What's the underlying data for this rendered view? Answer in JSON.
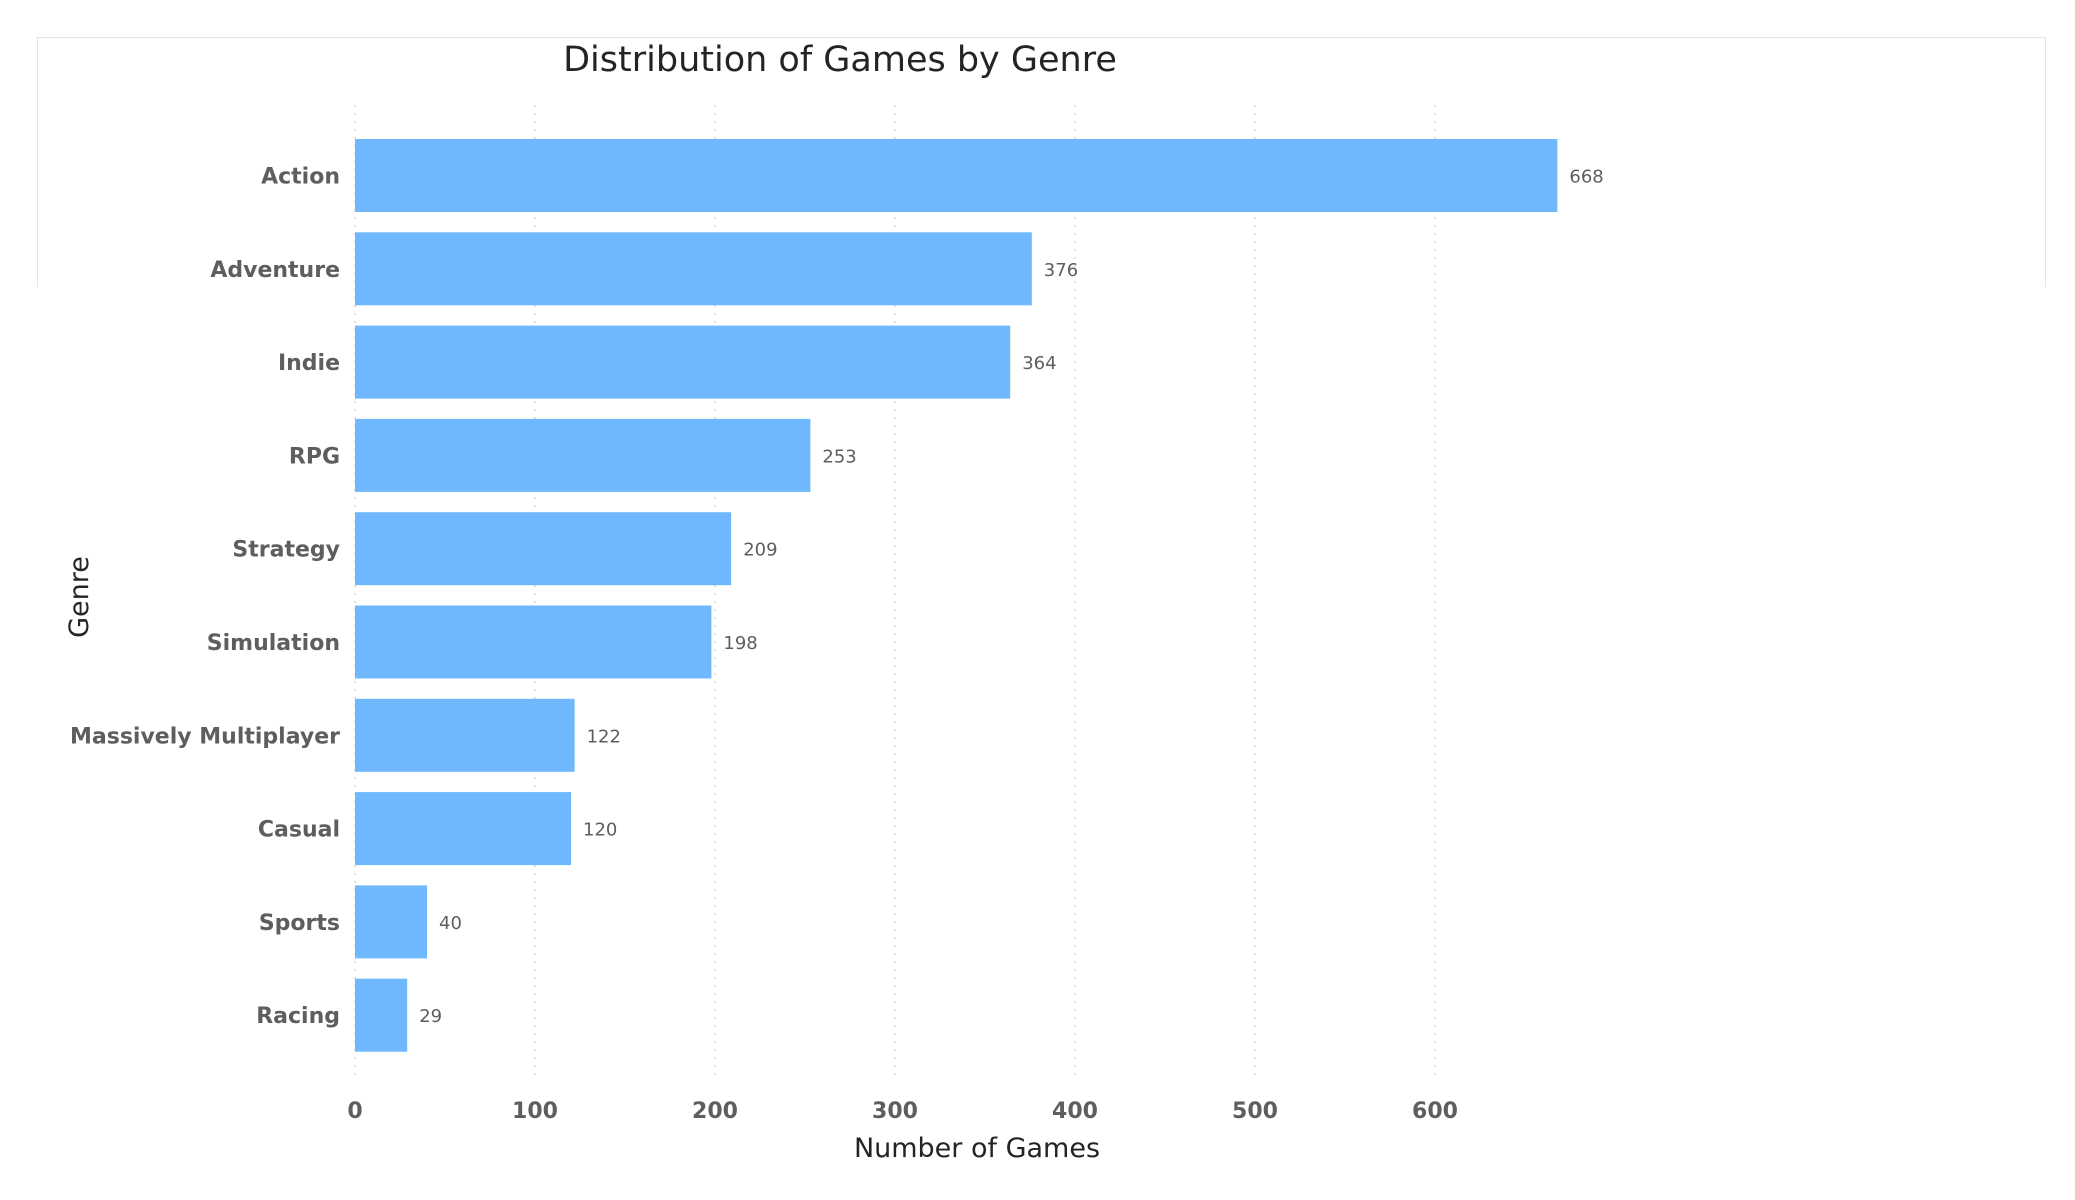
{
  "chart_data": {
    "type": "bar",
    "orientation": "horizontal",
    "title": "Distribution of Games by Genre",
    "xlabel": "Number of Games",
    "ylabel": "Genre",
    "categories": [
      "Action",
      "Adventure",
      "Indie",
      "RPG",
      "Strategy",
      "Simulation",
      "Massively Multiplayer",
      "Casual",
      "Sports",
      "Racing"
    ],
    "values": [
      668,
      376,
      364,
      253,
      209,
      198,
      122,
      120,
      40,
      29
    ],
    "xlim": [
      0,
      900
    ],
    "xticks": [
      0,
      100,
      200,
      300,
      400,
      500,
      600
    ],
    "grid": true,
    "bar_color": "#6fb8fd",
    "data_labels": true
  }
}
